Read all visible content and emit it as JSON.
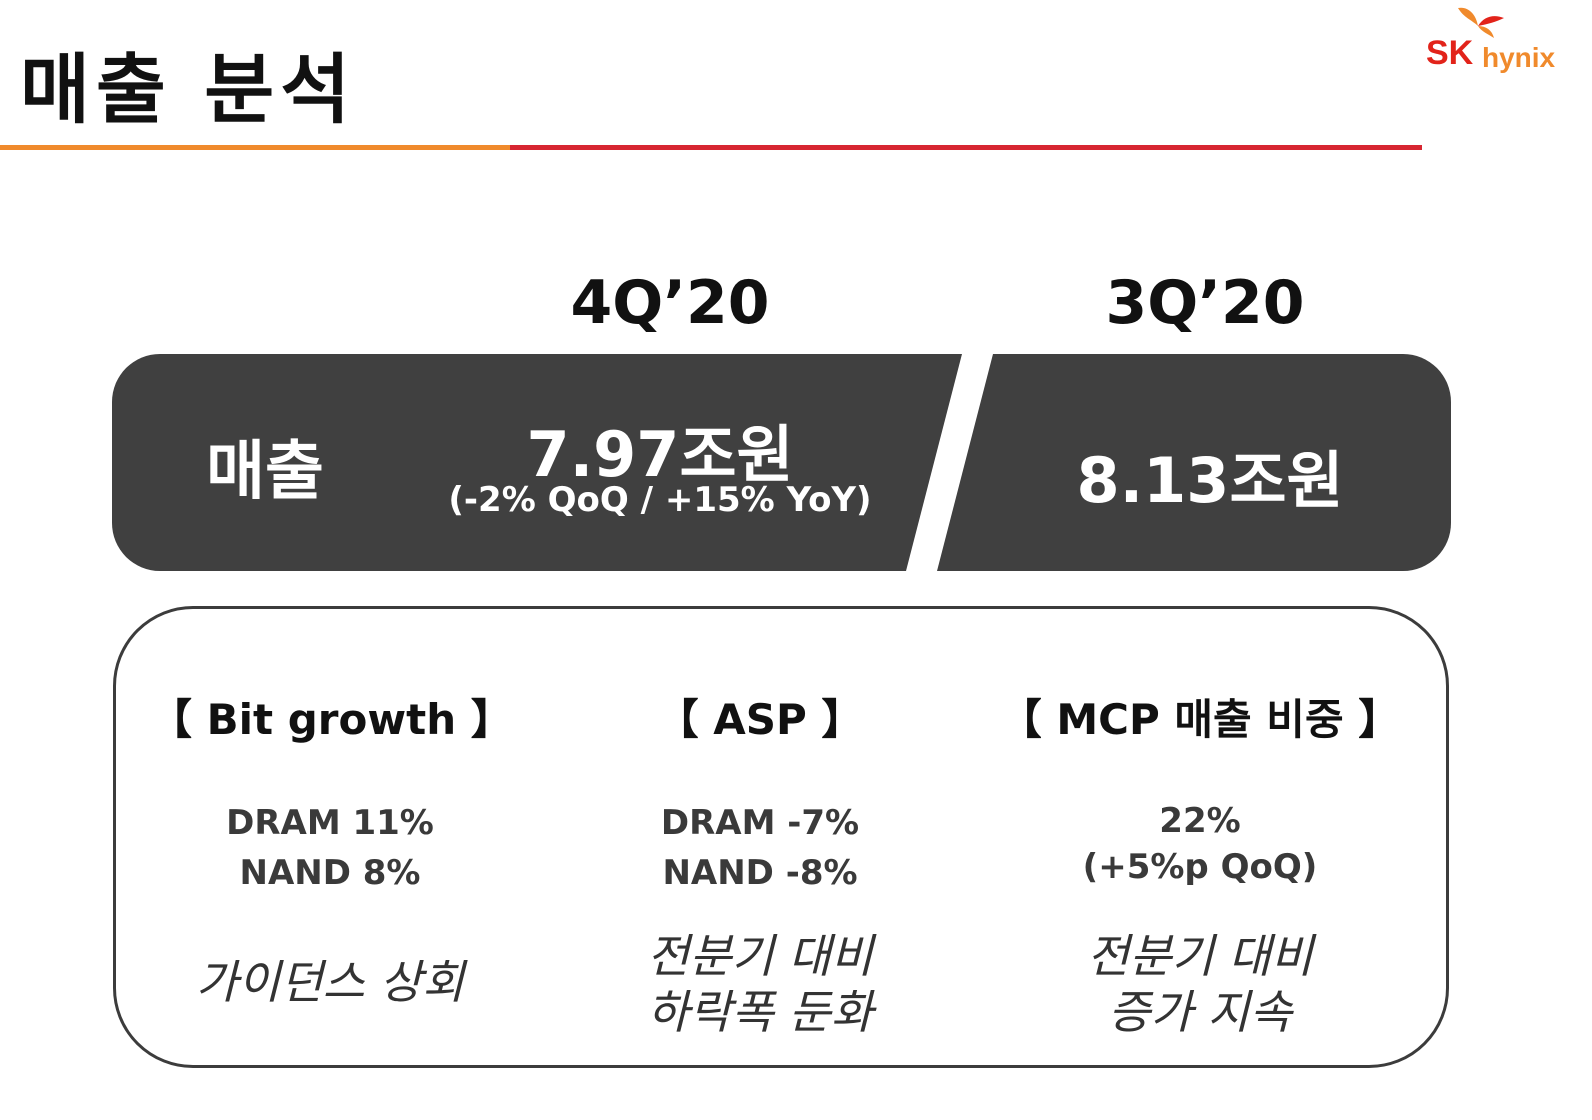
{
  "header": {
    "title": "매출 분석",
    "logo": {
      "brand": "SK",
      "product": "hynix",
      "colors": {
        "red": "#e2231a",
        "orange": "#f08a2c"
      }
    }
  },
  "rule_colors": {
    "left": "#f08a2c",
    "right": "#d72631"
  },
  "periods": {
    "current": "4Q’20",
    "previous": "3Q’20"
  },
  "revenue": {
    "label": "매출",
    "current_value": "7.97조원",
    "current_change": "(-2% QoQ / +15% YoY)",
    "previous_value": "8.13조원",
    "banner_color": "#404040"
  },
  "details": [
    {
      "heading": "【 Bit growth 】",
      "lines": [
        "DRAM 11%",
        "NAND 8%"
      ],
      "note": [
        "가이던스 상회"
      ]
    },
    {
      "heading": "【 ASP 】",
      "lines": [
        "DRAM -7%",
        "NAND -8%"
      ],
      "note": [
        "전분기 대비",
        "하락폭 둔화"
      ]
    },
    {
      "heading": "【 MCP 매출 비중 】",
      "lines": [
        "22%",
        "(+5%p QoQ)"
      ],
      "note": [
        "전분기 대비",
        "증가 지속"
      ]
    }
  ]
}
